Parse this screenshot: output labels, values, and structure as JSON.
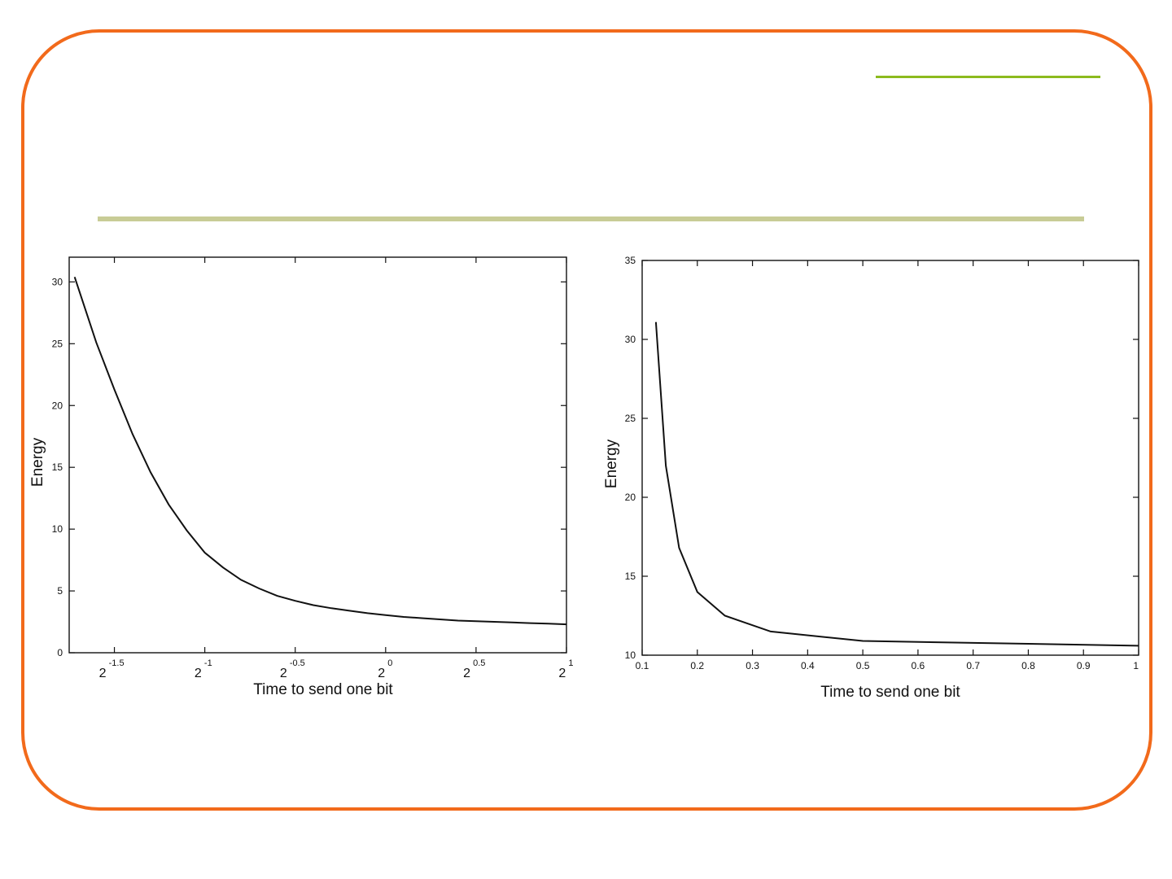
{
  "slide": {
    "border_color": "#f26a1b",
    "accent_color": "#8cbb1e",
    "rule_color": "#c8cc96"
  },
  "chart_data": [
    {
      "type": "line",
      "x_scale": "log2",
      "xlabel": "Time to send one bit",
      "ylabel": "Energy",
      "xlim_exponents": [
        -1.75,
        1
      ],
      "ylim": [
        0,
        32
      ],
      "x_tick_exponents": [
        -1.5,
        -1,
        -0.5,
        0,
        0.5,
        1
      ],
      "x_tick_base": "2",
      "x_tick_labels": [
        "-1.5",
        "-1",
        "-0.5",
        "0",
        "0.5",
        "1"
      ],
      "y_ticks": [
        0,
        5,
        10,
        15,
        20,
        25,
        30
      ],
      "y_tick_labels": [
        "0",
        "5",
        "10",
        "15",
        "20",
        "25",
        "30"
      ],
      "grid": false,
      "series": [
        {
          "x_exponents": [
            -1.72,
            -1.6,
            -1.5,
            -1.4,
            -1.3,
            -1.2,
            -1.1,
            -1.0,
            -0.9,
            -0.8,
            -0.7,
            -0.6,
            -0.5,
            -0.4,
            -0.3,
            -0.2,
            -0.1,
            0.0,
            0.1,
            0.2,
            0.3,
            0.4,
            0.5,
            0.6,
            0.7,
            0.8,
            0.9,
            1.0
          ],
          "values": [
            30.4,
            25.1,
            21.3,
            17.7,
            14.6,
            12.0,
            9.9,
            8.1,
            6.9,
            5.9,
            5.2,
            4.6,
            4.2,
            3.85,
            3.6,
            3.4,
            3.2,
            3.05,
            2.9,
            2.8,
            2.7,
            2.6,
            2.55,
            2.5,
            2.45,
            2.4,
            2.35,
            2.3
          ]
        }
      ]
    },
    {
      "type": "line",
      "xlabel": "Time to send one bit",
      "ylabel": "Energy",
      "xlim": [
        0.1,
        1
      ],
      "ylim": [
        10,
        35
      ],
      "x_ticks": [
        0.1,
        0.2,
        0.3,
        0.4,
        0.5,
        0.6,
        0.7,
        0.8,
        0.9,
        1
      ],
      "x_tick_labels": [
        "0.1",
        "0.2",
        "0.3",
        "0.4",
        "0.5",
        "0.6",
        "0.7",
        "0.8",
        "0.9",
        "1"
      ],
      "y_ticks": [
        10,
        15,
        20,
        25,
        30,
        35
      ],
      "y_tick_labels": [
        "10",
        "15",
        "20",
        "25",
        "30",
        "35"
      ],
      "grid": false,
      "series": [
        {
          "x": [
            0.125,
            0.143,
            0.167,
            0.2,
            0.25,
            0.333,
            0.5,
            1.0
          ],
          "values": [
            31.1,
            22.0,
            16.8,
            14.0,
            12.5,
            11.5,
            10.9,
            10.6
          ]
        }
      ]
    }
  ]
}
